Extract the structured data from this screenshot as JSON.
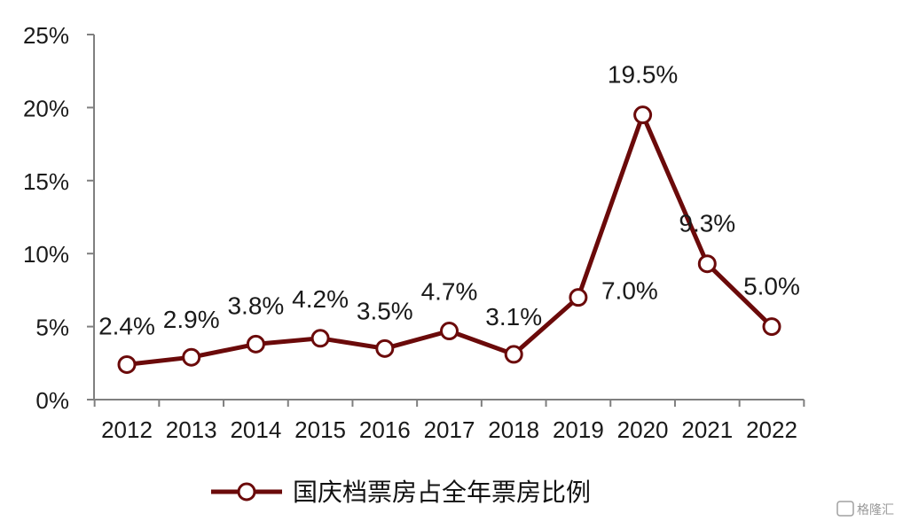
{
  "chart_data": {
    "type": "line",
    "categories": [
      "2012",
      "2013",
      "2014",
      "2015",
      "2016",
      "2017",
      "2018",
      "2019",
      "2020",
      "2021",
      "2022"
    ],
    "series": [
      {
        "name": "国庆档票房占全年票房比例",
        "values": [
          2.4,
          2.9,
          3.8,
          4.2,
          3.5,
          4.7,
          3.1,
          7.0,
          19.5,
          9.3,
          5.0
        ],
        "labels": [
          "2.4%",
          "2.9%",
          "3.8%",
          "4.2%",
          "3.5%",
          "4.7%",
          "3.1%",
          "7.0%",
          "19.5%",
          "9.3%",
          "5.0%"
        ],
        "color": "#6b0a0a"
      }
    ],
    "y_ticks": [
      "0%",
      "5%",
      "10%",
      "15%",
      "20%",
      "25%"
    ],
    "y_tick_values": [
      0,
      5,
      10,
      15,
      20,
      25
    ],
    "ylim": [
      0,
      25
    ],
    "grid": false,
    "legend_position": "bottom-center"
  },
  "watermark": {
    "text": "格隆汇"
  }
}
